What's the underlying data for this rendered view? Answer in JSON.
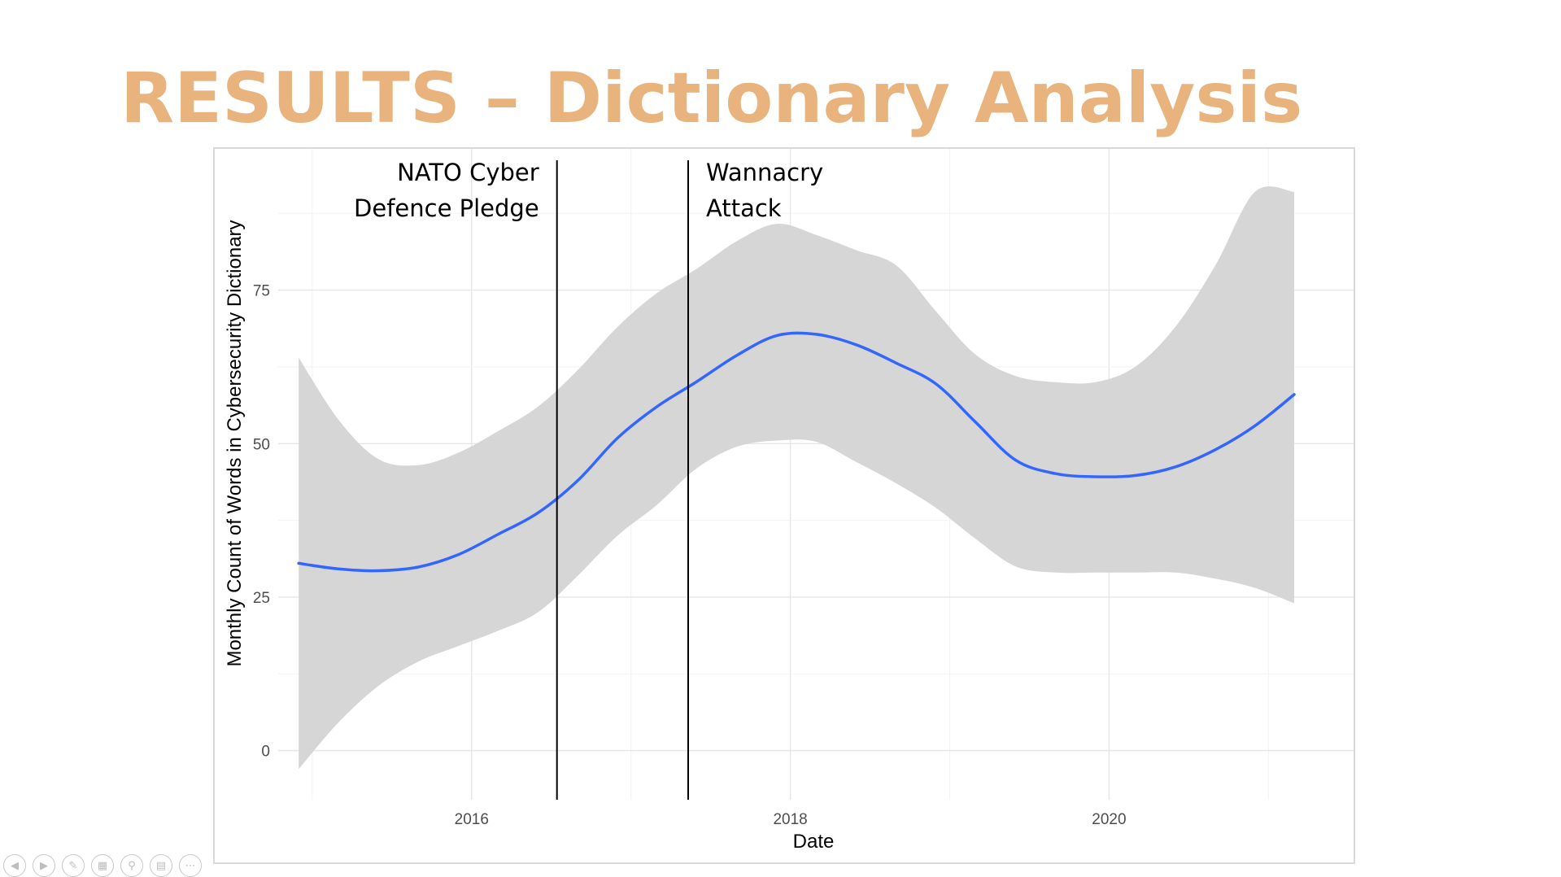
{
  "slide": {
    "title": "RESULTS – Dictionary Analysis",
    "title_color": "#e8b37c"
  },
  "chart_data": {
    "type": "line",
    "title": "",
    "xlabel": "Date",
    "ylabel": "Monthly Count of Words in Cybersecurity Dictionary",
    "xlim": [
      "2014-10-15",
      "2021-07-15"
    ],
    "ylim": [
      -8,
      98
    ],
    "x_ticks": [
      "2016",
      "2018",
      "2020"
    ],
    "y_ticks": [
      0,
      25,
      50,
      75
    ],
    "grid": true,
    "legend": "none",
    "line_color": "#3366ff",
    "band_color": "#d6d6d6",
    "series": [
      {
        "x": [
          "2014-12-01",
          "2015-03-01",
          "2015-06-01",
          "2015-09-01",
          "2015-12-01",
          "2016-03-01",
          "2016-06-01",
          "2016-09-01",
          "2016-12-01",
          "2017-03-01",
          "2017-06-01",
          "2017-09-01",
          "2017-12-01",
          "2018-03-01",
          "2018-06-01",
          "2018-09-01",
          "2018-12-01",
          "2019-03-01",
          "2019-06-01",
          "2019-09-01",
          "2019-12-01",
          "2020-03-01",
          "2020-06-01",
          "2020-09-01",
          "2020-12-01",
          "2021-03-01"
        ],
        "values": [
          30.5,
          29.6,
          29.3,
          29.9,
          31.9,
          35.2,
          38.7,
          44.0,
          50.9,
          56.0,
          60.1,
          64.4,
          67.6,
          67.8,
          66.1,
          63.1,
          59.7,
          53.5,
          47.3,
          45.1,
          44.6,
          44.8,
          46.2,
          49.0,
          52.9,
          58.0
        ],
        "ci_lower": [
          -3.0,
          4.5,
          10.5,
          14.5,
          17.0,
          19.5,
          22.5,
          28.5,
          35.0,
          40.0,
          46.0,
          49.5,
          50.5,
          50.3,
          47.0,
          43.5,
          39.5,
          34.5,
          30.0,
          29.0,
          29.0,
          29.0,
          29.0,
          28.0,
          26.5,
          24.0
        ],
        "ci_upper": [
          64.0,
          54.0,
          47.5,
          46.5,
          48.5,
          52.0,
          56.0,
          62.0,
          69.0,
          74.5,
          78.5,
          83.0,
          85.8,
          84.0,
          81.5,
          79.0,
          71.5,
          64.5,
          61.0,
          60.0,
          60.0,
          62.5,
          69.0,
          79.0,
          91.0,
          91.0
        ]
      }
    ],
    "annotations": [
      {
        "date": "2016-07-15",
        "lines": [
          "NATO Cyber",
          "Defence Pledge"
        ],
        "anchor": "left"
      },
      {
        "date": "2017-05-12",
        "lines": [
          "Wannacry",
          "Attack"
        ],
        "anchor": "right"
      }
    ]
  },
  "controls": {
    "icons": [
      "previous-icon",
      "next-icon",
      "pen-icon",
      "slides-icon",
      "zoom-icon",
      "subtitles-icon",
      "more-icon"
    ]
  }
}
